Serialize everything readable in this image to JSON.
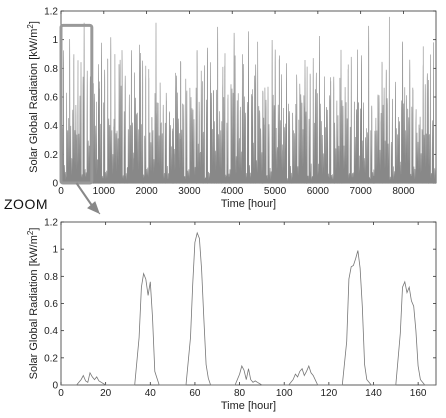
{
  "zoom_label": "ZOOM",
  "chart_data": [
    {
      "type": "line",
      "xlabel": "Time [hour]",
      "ylabel_main": "Solar Global Radiation [kW/m",
      "ylabel_sup": "2",
      "ylabel_end": "]",
      "xlim": [
        0,
        8760
      ],
      "ylim": [
        0,
        1.2
      ],
      "xticks": [
        0,
        1000,
        2000,
        3000,
        4000,
        5000,
        6000,
        7000,
        8000
      ],
      "yticks": [
        0,
        0.2,
        0.4,
        0.6,
        0.8,
        1,
        1.2
      ],
      "ytick_labels": [
        "0",
        "0.2",
        "0.4",
        "0.6",
        "0.8",
        "1",
        "1.2"
      ],
      "series_color": "#888888",
      "zoom_box": {
        "x": [
          0,
          720
        ],
        "y": [
          0,
          1.1
        ],
        "color": "#999999"
      },
      "daily_peaks_sample": [
        0.08,
        0.82,
        1.12,
        0.14,
        0.12,
        0.99,
        0.77,
        0.6,
        1.05,
        0.9,
        0.3,
        0.95,
        1.15,
        0.7,
        0.85,
        0.4,
        1.0,
        0.88,
        0.65,
        1.17
      ]
    },
    {
      "type": "line",
      "xlabel": "Time [hour]",
      "ylabel_main": "Solar Global Radiation [kW/m",
      "ylabel_sup": "2",
      "ylabel_end": "]",
      "xlim": [
        0,
        168
      ],
      "ylim": [
        0,
        1.2
      ],
      "xticks": [
        0,
        20,
        40,
        60,
        80,
        100,
        120,
        140,
        160
      ],
      "yticks": [
        0,
        0.2,
        0.4,
        0.6,
        0.8,
        1,
        1.2
      ],
      "ytick_labels": [
        "0",
        "0.2",
        "0.4",
        "0.6",
        "0.8",
        "1",
        "1.2"
      ],
      "series_color": "#777777",
      "x": [
        0,
        7,
        9,
        10,
        11,
        12,
        13,
        14,
        15,
        16,
        17,
        20,
        33,
        35,
        36,
        37,
        38,
        39,
        40,
        41,
        42,
        43,
        44,
        56,
        58,
        59,
        60,
        61,
        62,
        63,
        64,
        65,
        66,
        67,
        78,
        80,
        81,
        82,
        83,
        84,
        85,
        86,
        87,
        88,
        90,
        102,
        104,
        105,
        106,
        107,
        108,
        109,
        110,
        111,
        112,
        113,
        115,
        126,
        128,
        129,
        130,
        131,
        132,
        133,
        134,
        135,
        136,
        137,
        139,
        150,
        152,
        153,
        154,
        155,
        156,
        157,
        158,
        159,
        160,
        161,
        163,
        168
      ],
      "y": [
        0,
        0,
        0.04,
        0.07,
        0.03,
        0.02,
        0.09,
        0.06,
        0.04,
        0.06,
        0.03,
        0,
        0,
        0.35,
        0.72,
        0.82,
        0.78,
        0.66,
        0.76,
        0.5,
        0.1,
        0.05,
        0,
        0,
        0.35,
        0.74,
        1.05,
        1.12,
        1.08,
        0.85,
        0.48,
        0.15,
        0.05,
        0,
        0,
        0.08,
        0.14,
        0.11,
        0.04,
        0.12,
        0.04,
        0.02,
        0.03,
        0.02,
        0,
        0,
        0.04,
        0.08,
        0.06,
        0.1,
        0.12,
        0.07,
        0.1,
        0.14,
        0.09,
        0.07,
        0,
        0,
        0.32,
        0.78,
        0.87,
        0.88,
        0.93,
        0.99,
        0.86,
        0.58,
        0.15,
        0.04,
        0,
        0,
        0.38,
        0.72,
        0.76,
        0.68,
        0.72,
        0.62,
        0.58,
        0.4,
        0.14,
        0.04,
        0,
        0
      ]
    }
  ]
}
